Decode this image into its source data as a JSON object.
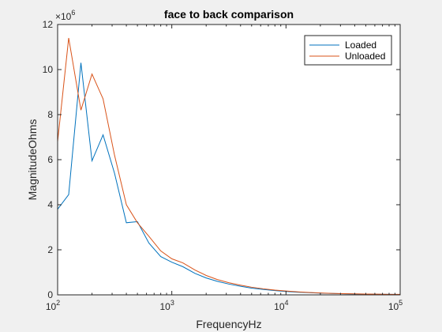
{
  "window": {
    "background": "#f0f0f0"
  },
  "chart_data": {
    "type": "line",
    "title": "face to back comparison",
    "xlabel": "FrequencyHz",
    "ylabel": "MagnitudeOhms",
    "xscale": "log",
    "xlim": [
      100,
      100000
    ],
    "ylim": [
      0,
      12000000
    ],
    "y_exponent_label": {
      "base": "×10",
      "exp": "6"
    },
    "x_ticks": [
      {
        "value": 100,
        "base": "10",
        "exp": "2"
      },
      {
        "value": 1000,
        "base": "10",
        "exp": "3"
      },
      {
        "value": 10000,
        "base": "10",
        "exp": "4"
      },
      {
        "value": 100000,
        "base": "10",
        "exp": "5"
      }
    ],
    "y_ticks": [
      {
        "value": 0,
        "label": "0"
      },
      {
        "value": 2000000,
        "label": "2"
      },
      {
        "value": 4000000,
        "label": "4"
      },
      {
        "value": 6000000,
        "label": "6"
      },
      {
        "value": 8000000,
        "label": "8"
      },
      {
        "value": 10000000,
        "label": "10"
      },
      {
        "value": 12000000,
        "label": "12"
      }
    ],
    "grid": false,
    "legend_position": "top-right",
    "x": [
      100,
      125,
      160,
      200,
      250,
      315,
      400,
      500,
      630,
      800,
      1000,
      1250,
      1600,
      2000,
      2500,
      3150,
      4000,
      5000,
      6300,
      8000,
      10000,
      12500,
      16000,
      20000,
      25000,
      31500,
      40000,
      50000,
      63000,
      80000,
      100000
    ],
    "series": [
      {
        "name": "Loaded",
        "color": "#0072bd",
        "values": [
          3800000,
          4450000,
          10300000,
          5950000,
          7100000,
          5400000,
          3200000,
          3250000,
          2300000,
          1700000,
          1450000,
          1250000,
          950000,
          750000,
          600000,
          480000,
          380000,
          300000,
          240000,
          190000,
          150000,
          120000,
          95000,
          75000,
          60000,
          50000,
          40000,
          33000,
          27000,
          22000,
          18000
        ]
      },
      {
        "name": "Unloaded",
        "color": "#d95319",
        "values": [
          6800000,
          11400000,
          8200000,
          9800000,
          8700000,
          6200000,
          4000000,
          3200000,
          2600000,
          1950000,
          1600000,
          1420000,
          1100000,
          860000,
          680000,
          540000,
          430000,
          340000,
          270000,
          210000,
          170000,
          135000,
          105000,
          83000,
          66000,
          54000,
          44000,
          36000,
          29000,
          24000,
          20000
        ]
      }
    ]
  }
}
